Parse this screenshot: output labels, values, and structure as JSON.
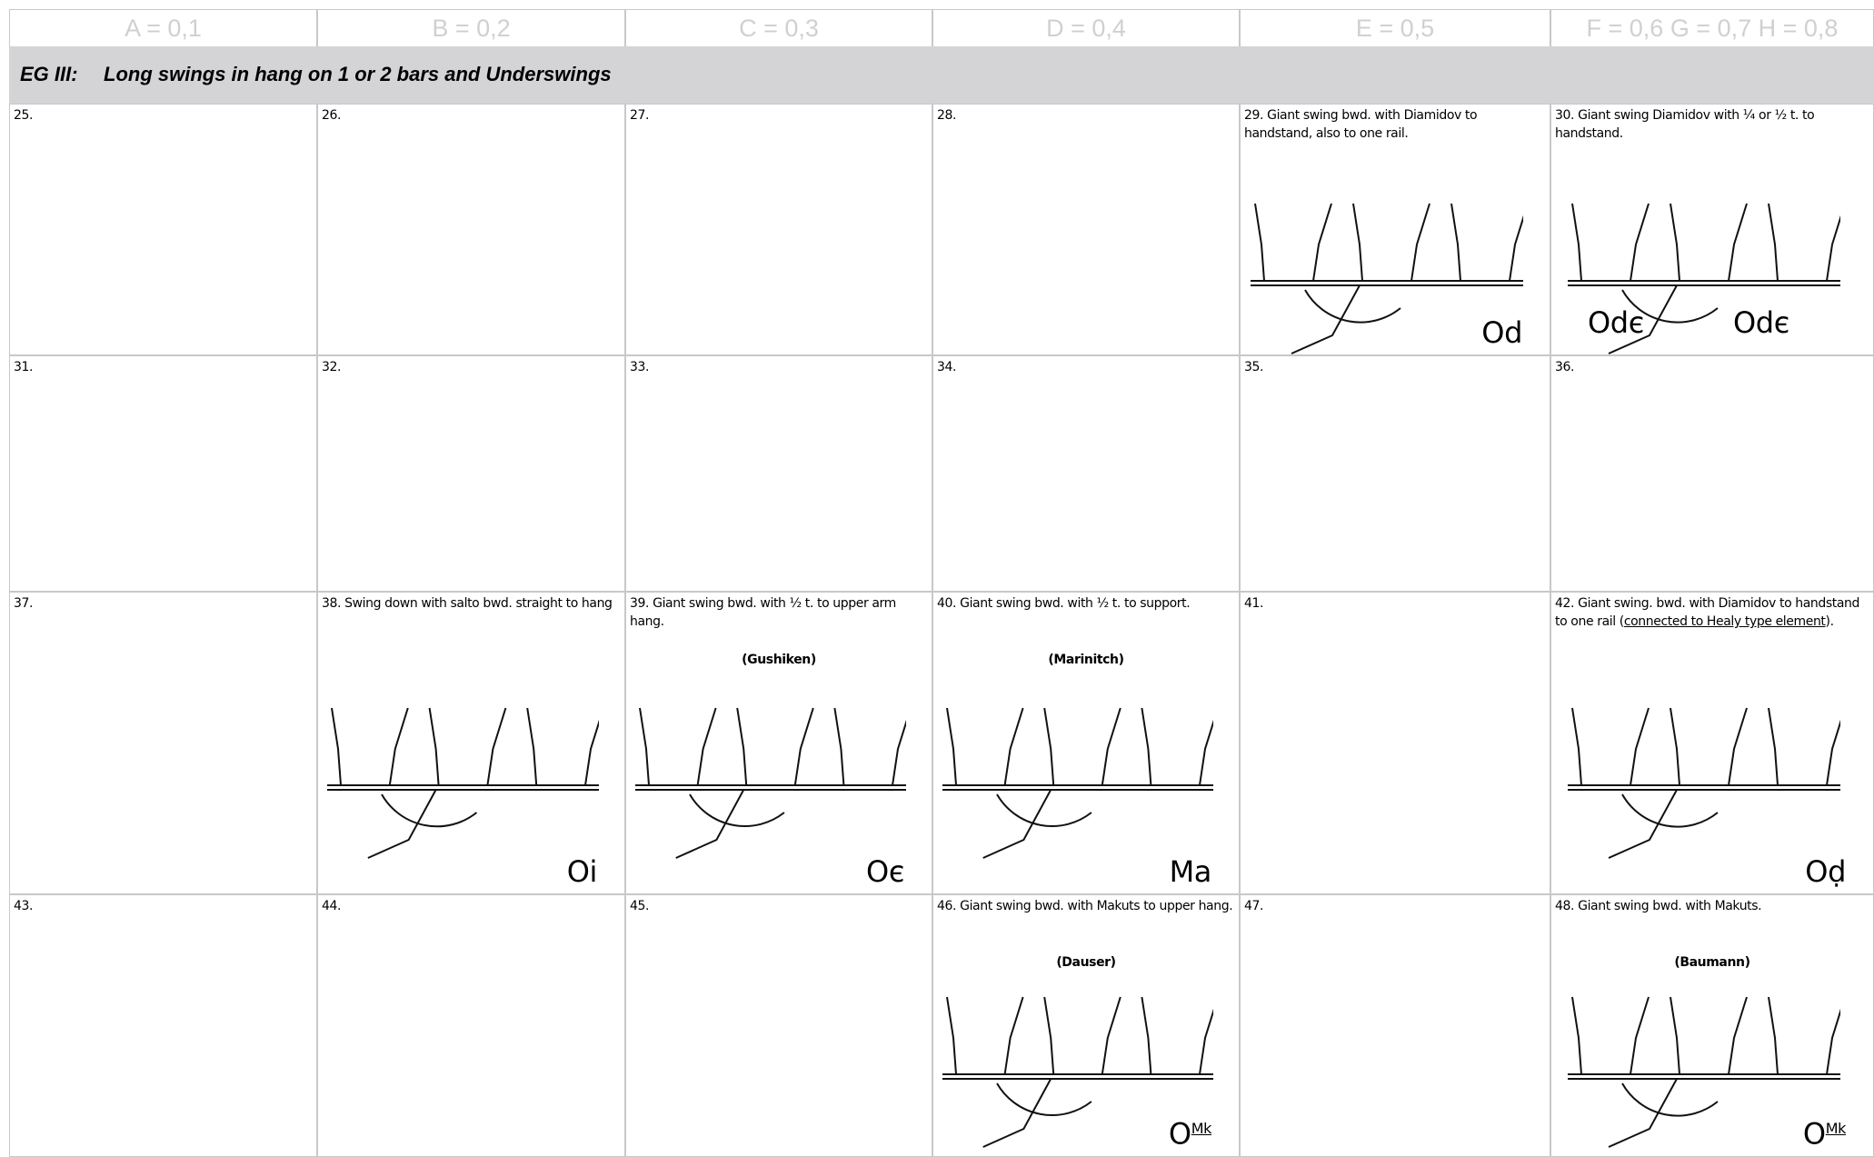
{
  "header": {
    "columns": [
      "A = 0,1",
      "B = 0,2",
      "C = 0,3",
      "D = 0,4",
      "E = 0,5",
      "F = 0,6 G = 0,7 H = 0,8"
    ]
  },
  "section": {
    "code": "EG III:",
    "title": "Long swings in hang on 1 or 2 bars and Underswings"
  },
  "rows": [
    [
      {
        "label": "25."
      },
      {
        "label": "26."
      },
      {
        "label": "27."
      },
      {
        "label": "28."
      },
      {
        "label": "29.  Giant swing bwd. with Diamidov to handstand, also to  one rail.",
        "symbols": [
          {
            "text": "Od"
          }
        ]
      },
      {
        "label": "30. Giant swing Diamidov with ¼ or ½ t. to handstand.",
        "symbols": [
          {
            "text": "Odє"
          },
          {
            "text": "Odє"
          }
        ]
      }
    ],
    [
      {
        "label": "31."
      },
      {
        "label": "32."
      },
      {
        "label": "33."
      },
      {
        "label": "34."
      },
      {
        "label": "35."
      },
      {
        "label": "36."
      }
    ],
    [
      {
        "label": "37."
      },
      {
        "label": "38. Swing down with salto bwd. straight to hang",
        "symbols": [
          {
            "text": "Oi"
          }
        ]
      },
      {
        "label": "39. Giant swing bwd. with ½ t. to upper arm hang.",
        "name": "(Gushiken)",
        "symbols": [
          {
            "text": "Oє"
          }
        ]
      },
      {
        "label": "40. Giant swing bwd. with ½ t. to support.",
        "name": "(Marinitch)",
        "symbols": [
          {
            "text": "Ma"
          }
        ]
      },
      {
        "label": "41."
      },
      {
        "label": "42.  Giant swing. bwd. with Diamidov to handstand to one rail  (",
        "underline": "connected to Healy type element",
        "label_end": ").",
        "symbols": [
          {
            "text": "Oḍ"
          }
        ]
      }
    ],
    [
      {
        "label": "43."
      },
      {
        "label": "44."
      },
      {
        "label": "45."
      },
      {
        "label": "46.  Giant swing bwd. with Makuts to upper hang.",
        "name": "(Dauser)",
        "symbols": [
          {
            "text": "O",
            "sup": "Mk"
          }
        ]
      },
      {
        "label": "47."
      },
      {
        "label": "48.  Giant swing bwd. with Makuts.",
        "name": "(Baumann)",
        "symbols": [
          {
            "text": "O",
            "sup": "Mk"
          }
        ]
      }
    ]
  ]
}
